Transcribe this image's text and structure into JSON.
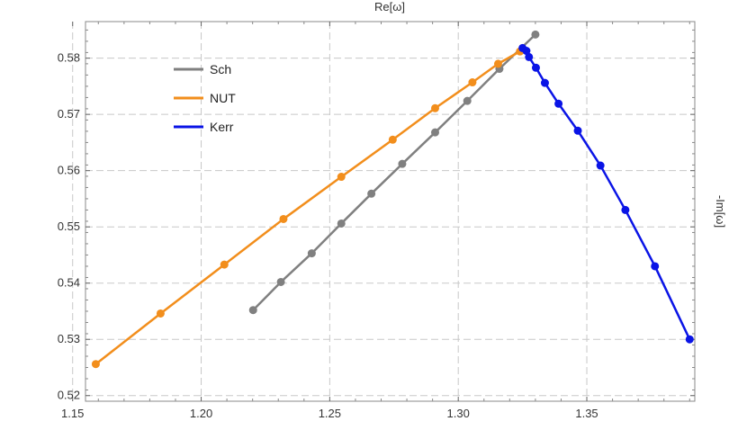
{
  "chart_data": {
    "type": "line",
    "title": "",
    "xlabel": "Re[ω]",
    "ylabel": "-Im[ω]",
    "xlim": [
      1.155,
      1.392
    ],
    "ylim": [
      0.519,
      0.5865
    ],
    "x_ticks": [
      "1.15",
      "1.20",
      "1.25",
      "1.30",
      "1.35"
    ],
    "y_ticks": [
      "0.52",
      "0.53",
      "0.54",
      "0.55",
      "0.56",
      "0.57",
      "0.58"
    ],
    "grid": true,
    "legend_position": "top-left",
    "series": [
      {
        "name": "Sch",
        "color": "#808080",
        "points": [
          [
            1.2202,
            0.5352
          ],
          [
            1.231,
            0.5402
          ],
          [
            1.243,
            0.5453
          ],
          [
            1.2545,
            0.5506
          ],
          [
            1.2662,
            0.5559
          ],
          [
            1.2782,
            0.5612
          ],
          [
            1.291,
            0.5668
          ],
          [
            1.3035,
            0.5724
          ],
          [
            1.316,
            0.5781
          ],
          [
            1.33,
            0.5842
          ]
        ]
      },
      {
        "name": "NUT",
        "color": "#F28E1C",
        "points": [
          [
            1.159,
            0.5256
          ],
          [
            1.1842,
            0.5346
          ],
          [
            1.209,
            0.5433
          ],
          [
            1.232,
            0.5514
          ],
          [
            1.2545,
            0.5589
          ],
          [
            1.2745,
            0.5655
          ],
          [
            1.291,
            0.5711
          ],
          [
            1.3055,
            0.5757
          ],
          [
            1.3155,
            0.579
          ],
          [
            1.324,
            0.5812
          ]
        ]
      },
      {
        "name": "Kerr",
        "color": "#0A14E6",
        "points": [
          [
            1.325,
            0.5818
          ],
          [
            1.3265,
            0.5813
          ],
          [
            1.3275,
            0.5802
          ],
          [
            1.3302,
            0.5783
          ],
          [
            1.3337,
            0.5756
          ],
          [
            1.339,
            0.5719
          ],
          [
            1.3465,
            0.5671
          ],
          [
            1.3553,
            0.5609
          ],
          [
            1.365,
            0.553
          ],
          [
            1.3765,
            0.543
          ],
          [
            1.39,
            0.53
          ]
        ]
      }
    ]
  }
}
